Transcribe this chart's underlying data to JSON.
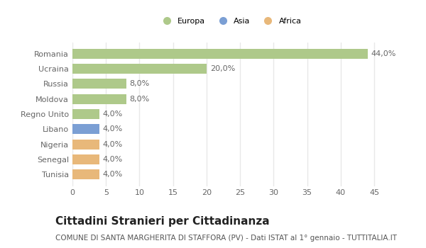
{
  "categories": [
    "Romania",
    "Ucraina",
    "Russia",
    "Moldova",
    "Regno Unito",
    "Libano",
    "Nigeria",
    "Senegal",
    "Tunisia"
  ],
  "values": [
    44.0,
    20.0,
    8.0,
    8.0,
    4.0,
    4.0,
    4.0,
    4.0,
    4.0
  ],
  "colors": [
    "#aec98a",
    "#aec98a",
    "#aec98a",
    "#aec98a",
    "#aec98a",
    "#7b9fd4",
    "#e8b87a",
    "#e8b87a",
    "#e8b87a"
  ],
  "labels": [
    "44,0%",
    "20,0%",
    "8,0%",
    "8,0%",
    "4,0%",
    "4,0%",
    "4,0%",
    "4,0%",
    "4,0%"
  ],
  "legend": [
    {
      "label": "Europa",
      "color": "#aec98a"
    },
    {
      "label": "Asia",
      "color": "#7b9fd4"
    },
    {
      "label": "Africa",
      "color": "#e8b87a"
    }
  ],
  "xlim": [
    0,
    47
  ],
  "xticks": [
    0,
    5,
    10,
    15,
    20,
    25,
    30,
    35,
    40,
    45
  ],
  "title": "Cittadini Stranieri per Cittadinanza",
  "subtitle": "COMUNE DI SANTA MARGHERITA DI STAFFORA (PV) - Dati ISTAT al 1° gennaio - TUTTITALIA.IT",
  "bg_color": "#ffffff",
  "plot_bg_color": "#ffffff",
  "bar_alpha": 1.0,
  "grid_color": "#e8e8e8",
  "title_fontsize": 11,
  "subtitle_fontsize": 7.5,
  "label_fontsize": 8,
  "tick_fontsize": 8
}
